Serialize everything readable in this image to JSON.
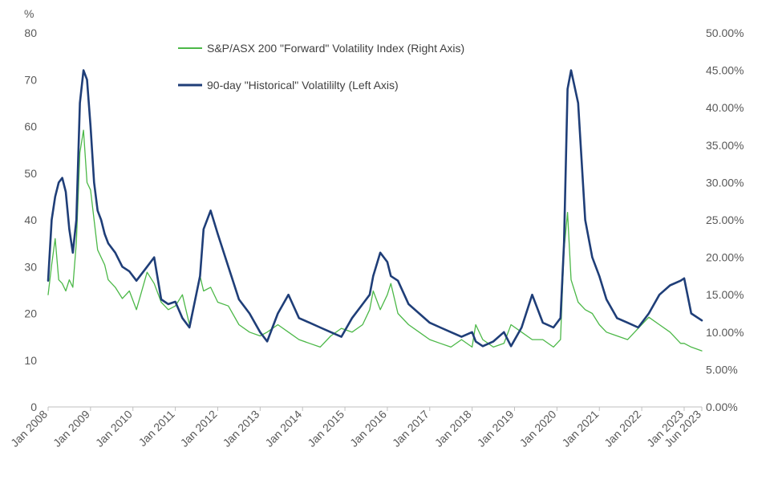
{
  "chart_data": {
    "type": "line",
    "ylabel_left": "%",
    "y_left": {
      "lim": [
        0,
        80
      ],
      "ticks": [
        "0",
        "10",
        "20",
        "30",
        "40",
        "50",
        "60",
        "70",
        "80"
      ]
    },
    "y_right": {
      "lim": [
        0,
        50
      ],
      "ticks": [
        "0.00%",
        "5.00%",
        "10.00%",
        "15.00%",
        "20.00%",
        "25.00%",
        "30.00%",
        "35.00%",
        "40.00%",
        "45.00%",
        "50.00%"
      ]
    },
    "x_ticks": [
      "Jan 2008",
      "Jan 2009",
      "Jan 2010",
      "Jan 2011",
      "Jan 2012",
      "Jan 2013",
      "Jan 2014",
      "Jan 2015",
      "Jan 2016",
      "Jan 2017",
      "Jan 2018",
      "Jan 2019",
      "Jan 2020",
      "Jan 2021",
      "Jan 2022",
      "Jan 2023",
      "Jun 2023"
    ],
    "x_range": [
      "2008-01",
      "2023-06"
    ],
    "grid": false,
    "legend_position": "top-center",
    "series": [
      {
        "name": "S&P/ASX 200 \"Forward\" Volatility Index (Right Axis)",
        "axis": "right",
        "color": "#4CB848",
        "x": [
          "2008-01",
          "2008-02",
          "2008-03",
          "2008-04",
          "2008-05",
          "2008-06",
          "2008-07",
          "2008-08",
          "2008-09",
          "2008-10",
          "2008-11",
          "2008-12",
          "2009-01",
          "2009-02",
          "2009-03",
          "2009-04",
          "2009-05",
          "2009-06",
          "2009-08",
          "2009-10",
          "2009-12",
          "2010-02",
          "2010-05",
          "2010-07",
          "2010-09",
          "2010-11",
          "2011-01",
          "2011-03",
          "2011-05",
          "2011-08",
          "2011-09",
          "2011-11",
          "2012-01",
          "2012-04",
          "2012-07",
          "2012-10",
          "2013-01",
          "2013-03",
          "2013-06",
          "2013-09",
          "2013-12",
          "2014-03",
          "2014-06",
          "2014-09",
          "2014-12",
          "2015-03",
          "2015-06",
          "2015-08",
          "2015-09",
          "2015-11",
          "2016-01",
          "2016-02",
          "2016-04",
          "2016-07",
          "2016-10",
          "2017-01",
          "2017-04",
          "2017-07",
          "2017-10",
          "2018-01",
          "2018-02",
          "2018-04",
          "2018-07",
          "2018-10",
          "2018-12",
          "2019-03",
          "2019-06",
          "2019-09",
          "2019-12",
          "2020-02",
          "2020-03",
          "2020-04",
          "2020-05",
          "2020-07",
          "2020-09",
          "2020-11",
          "2021-01",
          "2021-03",
          "2021-06",
          "2021-09",
          "2021-12",
          "2022-03",
          "2022-06",
          "2022-09",
          "2022-12",
          "2023-01",
          "2023-03",
          "2023-06"
        ],
        "values": [
          15.0,
          19.0,
          22.5,
          17.0,
          16.5,
          15.5,
          17.0,
          16.0,
          22.0,
          34.0,
          37.0,
          30.0,
          29.0,
          25.0,
          21.0,
          20.0,
          19.0,
          17.0,
          16.0,
          14.5,
          15.5,
          13.0,
          18.0,
          16.5,
          14.0,
          13.0,
          13.5,
          15.0,
          11.0,
          17.5,
          15.5,
          16.0,
          14.0,
          13.5,
          11.0,
          10.0,
          9.5,
          10.0,
          11.0,
          10.0,
          9.0,
          8.5,
          8.0,
          9.5,
          10.5,
          10.0,
          11.0,
          13.0,
          15.5,
          13.0,
          15.0,
          16.5,
          12.5,
          11.0,
          10.0,
          9.0,
          8.5,
          8.0,
          9.0,
          8.0,
          11.0,
          9.0,
          8.0,
          8.5,
          11.0,
          10.0,
          9.0,
          9.0,
          8.0,
          9.0,
          21.0,
          26.0,
          17.0,
          14.0,
          13.0,
          12.5,
          11.0,
          10.0,
          9.5,
          9.0,
          10.5,
          12.0,
          11.0,
          10.0,
          8.5,
          8.5,
          8.0,
          7.5
        ]
      },
      {
        "name": "90-day \"Historical\" Volatililty (Left Axis)",
        "axis": "left",
        "color": "#1F3E78",
        "x": [
          "2008-01",
          "2008-02",
          "2008-03",
          "2008-04",
          "2008-05",
          "2008-06",
          "2008-07",
          "2008-08",
          "2008-09",
          "2008-10",
          "2008-11",
          "2008-12",
          "2009-01",
          "2009-02",
          "2009-03",
          "2009-04",
          "2009-05",
          "2009-06",
          "2009-08",
          "2009-10",
          "2009-12",
          "2010-02",
          "2010-05",
          "2010-07",
          "2010-09",
          "2010-11",
          "2011-01",
          "2011-03",
          "2011-05",
          "2011-08",
          "2011-09",
          "2011-11",
          "2012-01",
          "2012-04",
          "2012-07",
          "2012-10",
          "2013-01",
          "2013-03",
          "2013-06",
          "2013-09",
          "2013-12",
          "2014-03",
          "2014-06",
          "2014-09",
          "2014-12",
          "2015-03",
          "2015-06",
          "2015-08",
          "2015-09",
          "2015-11",
          "2016-01",
          "2016-02",
          "2016-04",
          "2016-07",
          "2016-10",
          "2017-01",
          "2017-04",
          "2017-07",
          "2017-10",
          "2018-01",
          "2018-02",
          "2018-04",
          "2018-07",
          "2018-10",
          "2018-12",
          "2019-03",
          "2019-06",
          "2019-09",
          "2019-12",
          "2020-02",
          "2020-03",
          "2020-04",
          "2020-05",
          "2020-07",
          "2020-09",
          "2020-11",
          "2021-01",
          "2021-03",
          "2021-06",
          "2021-09",
          "2021-12",
          "2022-03",
          "2022-06",
          "2022-09",
          "2022-12",
          "2023-01",
          "2023-03",
          "2023-06"
        ],
        "values": [
          27.0,
          40.0,
          45.0,
          48.0,
          49.0,
          46.0,
          38.0,
          33.0,
          40.0,
          65.0,
          72.0,
          70.0,
          60.0,
          48.0,
          42.0,
          40.0,
          37.0,
          35.0,
          33.0,
          30.0,
          29.0,
          27.0,
          30.0,
          32.0,
          23.0,
          22.0,
          22.5,
          19.0,
          17.0,
          28.0,
          38.0,
          42.0,
          37.0,
          30.0,
          23.0,
          20.0,
          16.0,
          14.0,
          20.0,
          24.0,
          19.0,
          18.0,
          17.0,
          16.0,
          15.0,
          19.0,
          22.0,
          24.0,
          28.0,
          33.0,
          31.0,
          28.0,
          27.0,
          22.0,
          20.0,
          18.0,
          17.0,
          16.0,
          15.0,
          16.0,
          14.0,
          13.0,
          14.0,
          16.0,
          13.0,
          17.0,
          24.0,
          18.0,
          17.0,
          19.0,
          35.0,
          68.0,
          72.0,
          65.0,
          40.0,
          32.0,
          28.0,
          23.0,
          19.0,
          18.0,
          17.0,
          20.0,
          24.0,
          26.0,
          27.0,
          27.5,
          20.0,
          18.5
        ]
      }
    ]
  }
}
